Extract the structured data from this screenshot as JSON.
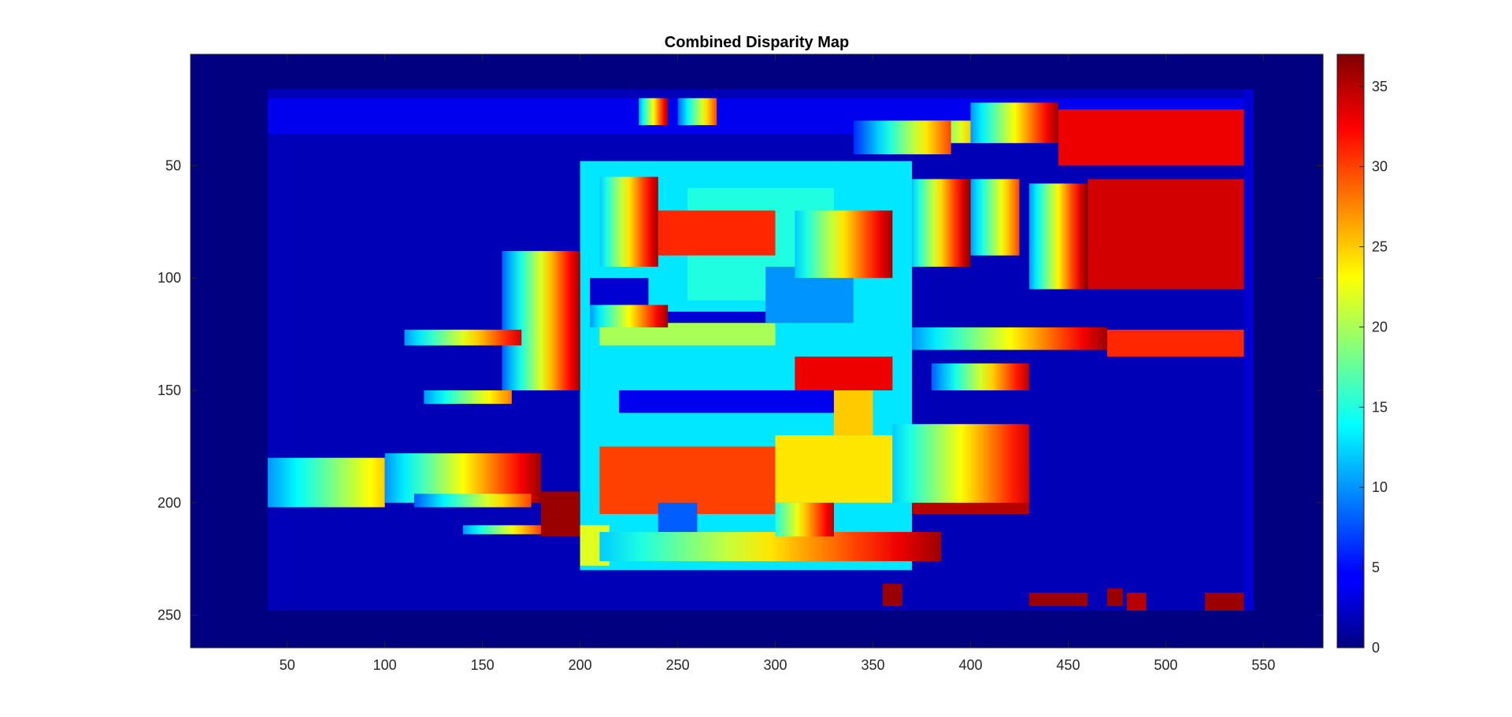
{
  "chart_data": {
    "type": "heatmap",
    "title": "Combined Disparity Map",
    "xlabel": "",
    "ylabel": "",
    "xlim": [
      0.5,
      580.5
    ],
    "ylim": [
      0.5,
      264.5
    ],
    "y_direction": "reverse",
    "x_ticks": [
      50,
      100,
      150,
      200,
      250,
      300,
      350,
      400,
      450,
      500,
      550
    ],
    "y_ticks": [
      50,
      100,
      150,
      200,
      250
    ],
    "colorbar": {
      "colormap": "jet",
      "clim": [
        0,
        37
      ],
      "ticks": [
        0,
        5,
        10,
        15,
        20,
        25,
        30,
        35
      ],
      "location": "right"
    },
    "grid": false,
    "colors": {
      "background": "#000080",
      "interior": "#0000b8",
      "high": "#800000"
    },
    "regions": [
      {
        "x": [
          40,
          540
        ],
        "y": [
          16,
          248
        ],
        "value": 2
      },
      {
        "x": [
          540,
          545
        ],
        "y": [
          16,
          248
        ],
        "value": 3
      },
      {
        "x": [
          40,
          540
        ],
        "y": [
          20,
          36
        ],
        "value": 4
      },
      {
        "x": [
          200,
          370
        ],
        "y": [
          48,
          230
        ],
        "value": 13
      },
      {
        "x": [
          205,
          235
        ],
        "y": [
          100,
          112
        ],
        "value": 3
      },
      {
        "x": [
          235,
          300
        ],
        "y": [
          115,
          122
        ],
        "value": 3
      },
      {
        "x": [
          210,
          300
        ],
        "y": [
          120,
          130
        ],
        "value": 20
      },
      {
        "x": [
          220,
          350
        ],
        "y": [
          150,
          160
        ],
        "value": 4
      },
      {
        "x": [
          255,
          330
        ],
        "y": [
          60,
          110
        ],
        "value": 15
      },
      {
        "x": [
          240,
          300
        ],
        "y": [
          70,
          90
        ],
        "value": 31
      },
      {
        "x": [
          295,
          340
        ],
        "y": [
          95,
          120
        ],
        "value": 10
      },
      {
        "x": [
          210,
          300
        ],
        "y": [
          175,
          205
        ],
        "value": 30
      },
      {
        "x": [
          300,
          360
        ],
        "y": [
          170,
          200
        ],
        "value": 24
      },
      {
        "x": [
          310,
          360
        ],
        "y": [
          135,
          150
        ],
        "value": 33
      },
      {
        "x": [
          330,
          350
        ],
        "y": [
          150,
          170
        ],
        "value": 25
      },
      {
        "x": [
          240,
          260
        ],
        "y": [
          200,
          215
        ],
        "value": 8
      },
      {
        "x": [
          180,
          200
        ],
        "y": [
          195,
          215
        ],
        "value": 36
      },
      {
        "x": [
          200,
          215
        ],
        "y": [
          210,
          228
        ],
        "value": 22
      },
      {
        "x": [
          445,
          540
        ],
        "y": [
          25,
          50
        ],
        "value": 33
      },
      {
        "x": [
          460,
          540
        ],
        "y": [
          56,
          105
        ],
        "value": 34
      },
      {
        "x": [
          430,
          460
        ],
        "y": [
          85,
          105
        ],
        "value": 36
      },
      {
        "x": [
          380,
          540
        ],
        "y": [
          112,
          122
        ],
        "value": 2
      },
      {
        "x": [
          470,
          540
        ],
        "y": [
          123,
          135
        ],
        "value": 31
      },
      {
        "x": [
          175,
          200
        ],
        "y": [
          90,
          150
        ],
        "value": 36
      },
      {
        "x": [
          370,
          430
        ],
        "y": [
          185,
          205
        ],
        "value": 35
      },
      {
        "x": [
          430,
          460
        ],
        "y": [
          240,
          246
        ],
        "value": 36
      },
      {
        "x": [
          470,
          478
        ],
        "y": [
          238,
          246
        ],
        "value": 36
      },
      {
        "x": [
          355,
          365
        ],
        "y": [
          236,
          246
        ],
        "value": 36
      },
      {
        "x": [
          480,
          490
        ],
        "y": [
          240,
          248
        ],
        "value": 35
      },
      {
        "x": [
          520,
          540
        ],
        "y": [
          240,
          248
        ],
        "value": 36
      }
    ],
    "bands": [
      {
        "x": [
          160,
          200
        ],
        "y": [
          88,
          150
        ],
        "from": 8,
        "to": 36
      },
      {
        "x": [
          110,
          170
        ],
        "y": [
          123,
          130
        ],
        "from": 10,
        "to": 34
      },
      {
        "x": [
          205,
          245
        ],
        "y": [
          112,
          122
        ],
        "from": 10,
        "to": 36
      },
      {
        "x": [
          210,
          240
        ],
        "y": [
          55,
          95
        ],
        "from": 12,
        "to": 36
      },
      {
        "x": [
          230,
          245
        ],
        "y": [
          20,
          32
        ],
        "from": 10,
        "to": 36
      },
      {
        "x": [
          250,
          270
        ],
        "y": [
          20,
          32
        ],
        "from": 8,
        "to": 30
      },
      {
        "x": [
          310,
          360
        ],
        "y": [
          70,
          100
        ],
        "from": 12,
        "to": 36
      },
      {
        "x": [
          370,
          400
        ],
        "y": [
          56,
          95
        ],
        "from": 12,
        "to": 37
      },
      {
        "x": [
          400,
          425
        ],
        "y": [
          56,
          90
        ],
        "from": 10,
        "to": 30
      },
      {
        "x": [
          430,
          460
        ],
        "y": [
          58,
          105
        ],
        "from": 10,
        "to": 37
      },
      {
        "x": [
          370,
          420
        ],
        "y": [
          30,
          40
        ],
        "from": 8,
        "to": 36
      },
      {
        "x": [
          340,
          390
        ],
        "y": [
          30,
          45
        ],
        "from": 6,
        "to": 30
      },
      {
        "x": [
          400,
          445
        ],
        "y": [
          22,
          40
        ],
        "from": 10,
        "to": 36
      },
      {
        "x": [
          370,
          470
        ],
        "y": [
          122,
          132
        ],
        "from": 10,
        "to": 36
      },
      {
        "x": [
          380,
          430
        ],
        "y": [
          138,
          150
        ],
        "from": 8,
        "to": 35
      },
      {
        "x": [
          40,
          100
        ],
        "y": [
          180,
          202
        ],
        "from": 10,
        "to": 25
      },
      {
        "x": [
          100,
          180
        ],
        "y": [
          178,
          200
        ],
        "from": 10,
        "to": 36
      },
      {
        "x": [
          115,
          175
        ],
        "y": [
          196,
          202
        ],
        "from": 8,
        "to": 30
      },
      {
        "x": [
          210,
          385
        ],
        "y": [
          213,
          226
        ],
        "from": 12,
        "to": 36
      },
      {
        "x": [
          360,
          430
        ],
        "y": [
          165,
          200
        ],
        "from": 12,
        "to": 34
      },
      {
        "x": [
          300,
          330
        ],
        "y": [
          200,
          215
        ],
        "from": 15,
        "to": 35
      },
      {
        "x": [
          120,
          165
        ],
        "y": [
          150,
          156
        ],
        "from": 10,
        "to": 28
      },
      {
        "x": [
          140,
          180
        ],
        "y": [
          210,
          214
        ],
        "from": 10,
        "to": 30
      }
    ]
  }
}
